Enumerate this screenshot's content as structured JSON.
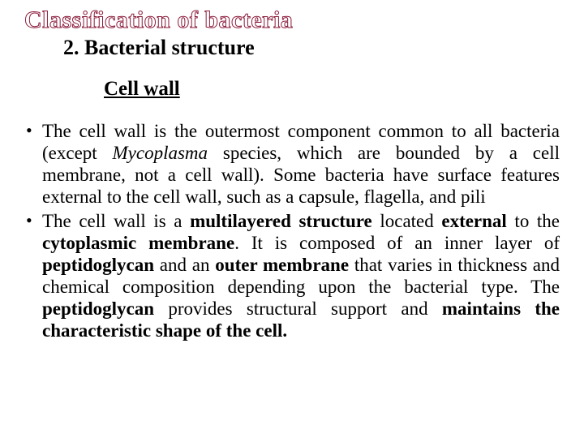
{
  "title": "Classification of bacteria",
  "subtitle": "2. Bacterial structure",
  "heading": "Cell wall",
  "bullets": [
    {
      "parts": [
        {
          "t": "The cell wall is the outermost component common to all bacteria (except "
        },
        {
          "t": "Mycoplasma",
          "italic": true
        },
        {
          "t": " species, which are bounded by a cell membrane, not a cell wall). Some bacteria have surface features external to the cell wall, such as a capsule, flagella, and pili"
        }
      ]
    },
    {
      "parts": [
        {
          "t": "The cell wall is a "
        },
        {
          "t": "multilayered structure",
          "bold": true
        },
        {
          "t": " located "
        },
        {
          "t": "external",
          "bold": true
        },
        {
          "t": " to the "
        },
        {
          "t": "cytoplasmic membrane",
          "bold": true
        },
        {
          "t": ". It is composed of an inner layer of "
        },
        {
          "t": "peptidoglycan",
          "bold": true
        },
        {
          "t": " and an "
        },
        {
          "t": "outer membrane",
          "bold": true
        },
        {
          "t": " that varies in thickness and chemical composition depending upon the bacterial type. The "
        },
        {
          "t": "peptidoglycan",
          "bold": true
        },
        {
          "t": " provides structural support and "
        },
        {
          "t": "maintains the characteristic shape of the cell.",
          "bold": true
        }
      ]
    }
  ],
  "colors": {
    "title_outline": "#8b1a3a",
    "text": "#000000",
    "background": "#ffffff"
  },
  "fonts": {
    "family": "Times New Roman",
    "title_size": 30,
    "subtitle_size": 26,
    "heading_size": 25,
    "body_size": 23
  }
}
